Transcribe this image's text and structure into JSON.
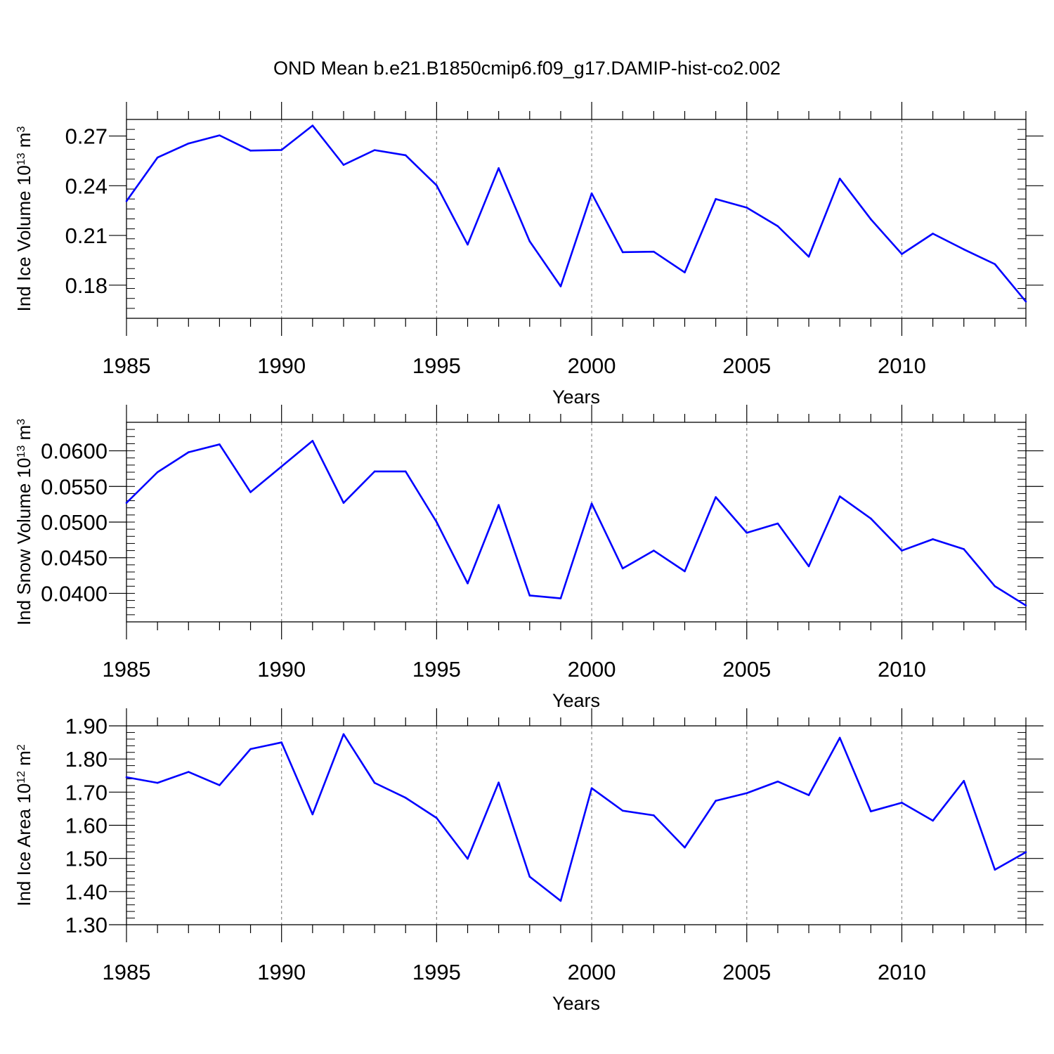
{
  "title": "OND Mean b.e21.B1850cmip6.f09_g17.DAMIP-hist-co2.002",
  "line_color": "#0000ff",
  "chart_data": [
    {
      "type": "line",
      "ylabel": "Ind Ice Volume 10",
      "ylabel_exp": "13",
      "ylabel_unit": " m",
      "ylabel_unit_exp": "3",
      "xlabel": "Years",
      "xlim": [
        1985,
        2014
      ],
      "ylim": [
        0.16,
        0.28
      ],
      "x_ticks": [
        "1985",
        "1990",
        "1995",
        "2000",
        "2005",
        "2010"
      ],
      "y_ticks": [
        "0.18",
        "0.21",
        "0.24",
        "0.27"
      ],
      "x": [
        1985,
        1986,
        1987,
        1988,
        1989,
        1990,
        1991,
        1992,
        1993,
        1994,
        1995,
        1996,
        1997,
        1998,
        1999,
        2000,
        2001,
        2002,
        2003,
        2004,
        2005,
        2006,
        2007,
        2008,
        2009,
        2010,
        2011,
        2012,
        2013,
        2014
      ],
      "values": [
        0.2307,
        0.257,
        0.2655,
        0.2704,
        0.2612,
        0.2616,
        0.2763,
        0.2526,
        0.2615,
        0.2584,
        0.2402,
        0.2045,
        0.2506,
        0.2065,
        0.1793,
        0.2354,
        0.1999,
        0.2002,
        0.1877,
        0.232,
        0.2268,
        0.2156,
        0.1972,
        0.2443,
        0.2198,
        0.1988,
        0.2111,
        0.2016,
        0.1927,
        0.1701
      ]
    },
    {
      "type": "line",
      "ylabel": "Ind Snow Volume 10",
      "ylabel_exp": "13",
      "ylabel_unit": " m",
      "ylabel_unit_exp": "3",
      "xlabel": "Years",
      "xlim": [
        1985,
        2014
      ],
      "ylim": [
        0.036,
        0.064
      ],
      "x_ticks": [
        "1985",
        "1990",
        "1995",
        "2000",
        "2005",
        "2010"
      ],
      "y_ticks": [
        "0.0400",
        "0.0450",
        "0.0500",
        "0.0550",
        "0.0600"
      ],
      "x": [
        1985,
        1986,
        1987,
        1988,
        1989,
        1990,
        1991,
        1992,
        1993,
        1994,
        1995,
        1996,
        1997,
        1998,
        1999,
        2000,
        2001,
        2002,
        2003,
        2004,
        2005,
        2006,
        2007,
        2008,
        2009,
        2010,
        2011,
        2012,
        2013,
        2014
      ],
      "values": [
        0.0527,
        0.057,
        0.0598,
        0.0609,
        0.0542,
        0.0578,
        0.0614,
        0.0527,
        0.0571,
        0.0571,
        0.05,
        0.0414,
        0.0524,
        0.0397,
        0.0393,
        0.0526,
        0.0435,
        0.046,
        0.0431,
        0.0535,
        0.0485,
        0.0498,
        0.0438,
        0.0536,
        0.0505,
        0.046,
        0.0476,
        0.0462,
        0.041,
        0.0383
      ]
    },
    {
      "type": "line",
      "ylabel": "Ind Ice Area 10",
      "ylabel_exp": "12",
      "ylabel_unit": " m",
      "ylabel_unit_exp": "2",
      "xlabel": "Years",
      "xlim": [
        1985,
        2014
      ],
      "ylim": [
        1.3,
        1.9
      ],
      "x_ticks": [
        "1985",
        "1990",
        "1995",
        "2000",
        "2005",
        "2010"
      ],
      "y_ticks": [
        "1.30",
        "1.40",
        "1.50",
        "1.60",
        "1.70",
        "1.80",
        "1.90"
      ],
      "x": [
        1985,
        1986,
        1987,
        1988,
        1989,
        1990,
        1991,
        1992,
        1993,
        1994,
        1995,
        1996,
        1997,
        1998,
        1999,
        2000,
        2001,
        2002,
        2003,
        2004,
        2005,
        2006,
        2007,
        2008,
        2009,
        2010,
        2011,
        2012,
        2013,
        2014
      ],
      "values": [
        1.745,
        1.728,
        1.761,
        1.721,
        1.83,
        1.85,
        1.633,
        1.875,
        1.728,
        1.683,
        1.622,
        1.499,
        1.729,
        1.445,
        1.372,
        1.712,
        1.644,
        1.63,
        1.533,
        1.674,
        1.697,
        1.732,
        1.691,
        1.864,
        1.642,
        1.668,
        1.614,
        1.734,
        1.466,
        1.519
      ]
    }
  ]
}
